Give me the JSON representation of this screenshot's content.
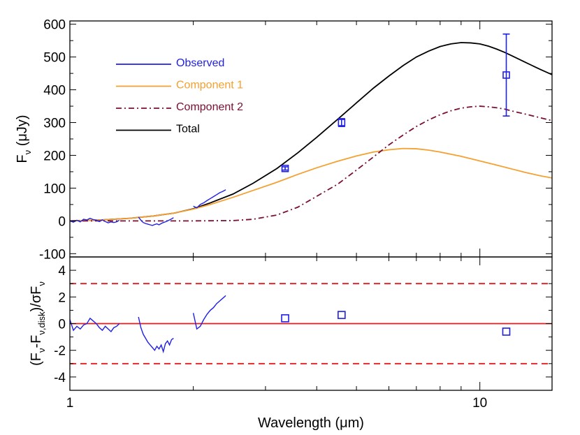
{
  "chart_data": [
    {
      "type": "line",
      "panel": "top",
      "title": "",
      "xlabel": "",
      "ylabel": "F",
      "ylabel_sub": "ν",
      "ylabel_unit": "(μJy)",
      "x_scale": "log",
      "xlim": [
        1,
        15
      ],
      "ylim": [
        -110,
        610
      ],
      "yticks": [
        -100,
        0,
        100,
        200,
        300,
        400,
        500,
        600
      ],
      "ytick_labels": [
        "-100",
        "0",
        "100",
        "200",
        "300",
        "400",
        "500",
        "600"
      ],
      "legend_position": "top-left",
      "legend": [
        {
          "label": "Observed",
          "color": "#1f1fe6",
          "style": "solid"
        },
        {
          "label": "Component 1",
          "color": "#f5a030",
          "style": "solid"
        },
        {
          "label": "Component 2",
          "color": "#7a0f30",
          "style": "dash-dot"
        },
        {
          "label": "Total",
          "color": "#000000",
          "style": "solid"
        }
      ],
      "series": [
        {
          "name": "Total",
          "color": "#000000",
          "x": [
            1.0,
            1.2,
            1.4,
            1.6,
            1.8,
            2.0,
            2.2,
            2.5,
            2.8,
            3.2,
            3.6,
            4.0,
            4.5,
            5.0,
            5.5,
            6.0,
            6.5,
            7.0,
            7.5,
            8.0,
            8.5,
            9.0,
            9.5,
            10.0,
            10.5,
            11.0,
            11.5,
            12.0,
            13.0,
            14.0,
            15.0
          ],
          "y": [
            0,
            3,
            8,
            15,
            24,
            37,
            55,
            82,
            115,
            160,
            208,
            255,
            310,
            360,
            405,
            442,
            474,
            500,
            518,
            532,
            540,
            544,
            543,
            540,
            533,
            524,
            514,
            503,
            482,
            463,
            446
          ]
        },
        {
          "name": "Component 1",
          "color": "#f5a030",
          "x": [
            1.0,
            1.2,
            1.4,
            1.6,
            1.8,
            2.0,
            2.2,
            2.5,
            2.8,
            3.2,
            3.6,
            4.0,
            4.5,
            5.0,
            5.5,
            6.0,
            6.5,
            7.0,
            7.5,
            8.0,
            9.0,
            10.0,
            11.0,
            12.0,
            13.0,
            14.0,
            15.0
          ],
          "y": [
            0,
            3,
            8,
            15,
            24,
            36,
            50,
            72,
            93,
            118,
            142,
            162,
            182,
            198,
            210,
            217,
            221,
            220,
            216,
            210,
            197,
            183,
            170,
            158,
            147,
            138,
            131
          ]
        },
        {
          "name": "Component 2",
          "color": "#7a0f30",
          "x": [
            1.0,
            1.5,
            2.0,
            2.5,
            2.8,
            3.2,
            3.6,
            4.0,
            4.5,
            5.0,
            5.5,
            6.0,
            6.5,
            7.0,
            7.5,
            8.0,
            8.5,
            9.0,
            9.5,
            10.0,
            10.5,
            11.0,
            11.5,
            12.0,
            13.0,
            14.0,
            15.0
          ],
          "y": [
            0,
            0,
            0,
            1,
            5,
            18,
            42,
            75,
            112,
            155,
            195,
            232,
            262,
            288,
            308,
            324,
            336,
            344,
            348,
            350,
            348,
            345,
            341,
            335,
            325,
            315,
            306
          ]
        },
        {
          "name": "Observed",
          "color": "#1f1fe6",
          "segments": [
            {
              "x": [
                1.0,
                1.02,
                1.04,
                1.06,
                1.08,
                1.1,
                1.12,
                1.14,
                1.16,
                1.18,
                1.2,
                1.22,
                1.24,
                1.26,
                1.28,
                1.3,
                1.32
              ],
              "y": [
                0,
                -4,
                2,
                -3,
                5,
                3,
                8,
                4,
                2,
                -2,
                3,
                -2,
                -6,
                -3,
                -5,
                -3,
                2
              ]
            },
            {
              "x": [
                1.47,
                1.49,
                1.51,
                1.53,
                1.55,
                1.57,
                1.59,
                1.61,
                1.63,
                1.65,
                1.67,
                1.69,
                1.71,
                1.73,
                1.75,
                1.77,
                1.79
              ],
              "y": [
                12,
                2,
                -5,
                -8,
                -10,
                -12,
                -14,
                -11,
                -9,
                -12,
                -8,
                -5,
                -3,
                0,
                3,
                6,
                10
              ]
            },
            {
              "x": [
                2.0,
                2.04,
                2.08,
                2.12,
                2.16,
                2.2,
                2.24,
                2.28,
                2.32,
                2.36,
                2.4
              ],
              "y": [
                45,
                40,
                50,
                55,
                62,
                68,
                74,
                80,
                86,
                90,
                95
              ]
            }
          ]
        },
        {
          "name": "Observed photometry",
          "color": "#1f1fe6",
          "marker": "square",
          "x": [
            3.35,
            4.6,
            11.6
          ],
          "y": [
            160,
            300,
            445
          ],
          "yerr": [
            5,
            12,
            125
          ]
        }
      ]
    },
    {
      "type": "line",
      "panel": "bottom",
      "title": "",
      "xlabel": "Wavelength (μm)",
      "ylabel": "(F",
      "ylabel_parts": [
        "(F",
        "ν",
        "-F",
        "ν,disk",
        ")/σF",
        "ν"
      ],
      "x_scale": "log",
      "xlim": [
        1,
        15
      ],
      "ylim": [
        -5,
        5
      ],
      "yticks": [
        -4,
        -2,
        0,
        2,
        4
      ],
      "ytick_labels": [
        "-4",
        "-2",
        "0",
        "2",
        "4"
      ],
      "xticks": [
        1,
        10
      ],
      "xtick_labels": [
        "1",
        "10"
      ],
      "reference_lines": [
        {
          "y": 0,
          "color": "#e41a1c",
          "style": "solid"
        },
        {
          "y": 3,
          "color": "#e41a1c",
          "style": "dashed"
        },
        {
          "y": -3,
          "color": "#e41a1c",
          "style": "dashed"
        }
      ],
      "series": [
        {
          "name": "Observed residuals",
          "color": "#1f1fe6",
          "segments": [
            {
              "x": [
                1.0,
                1.02,
                1.04,
                1.06,
                1.08,
                1.1,
                1.12,
                1.14,
                1.16,
                1.18,
                1.2,
                1.22,
                1.24,
                1.26,
                1.28,
                1.3,
                1.32
              ],
              "y": [
                0.3,
                -0.5,
                -0.2,
                -0.4,
                -0.1,
                0.0,
                0.4,
                0.2,
                0.0,
                -0.3,
                -0.5,
                -0.2,
                -0.4,
                -0.6,
                -0.3,
                -0.2,
                0.0
              ]
            },
            {
              "x": [
                1.47,
                1.49,
                1.51,
                1.53,
                1.55,
                1.57,
                1.59,
                1.61,
                1.63,
                1.65,
                1.67,
                1.69,
                1.71,
                1.73,
                1.75,
                1.77,
                1.79
              ],
              "y": [
                0.5,
                -0.3,
                -0.8,
                -1.1,
                -1.4,
                -1.6,
                -1.8,
                -2.0,
                -1.7,
                -1.9,
                -1.6,
                -2.1,
                -1.5,
                -1.3,
                -1.6,
                -1.2,
                -1.1
              ]
            },
            {
              "x": [
                2.0,
                2.04,
                2.08,
                2.12,
                2.16,
                2.2,
                2.24,
                2.28,
                2.32,
                2.36,
                2.4
              ],
              "y": [
                0.8,
                -0.4,
                -0.2,
                0.3,
                0.7,
                1.0,
                1.2,
                1.5,
                1.7,
                1.9,
                2.1
              ]
            }
          ]
        },
        {
          "name": "Photometry residuals",
          "color": "#1f1fe6",
          "marker": "open-square",
          "x": [
            3.35,
            4.6,
            11.6
          ],
          "y": [
            0.4,
            0.65,
            -0.6
          ]
        }
      ]
    }
  ]
}
